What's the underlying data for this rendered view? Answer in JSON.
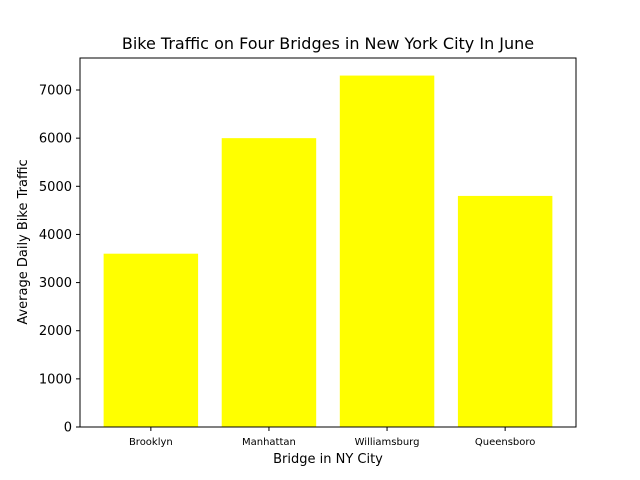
{
  "chart_data": {
    "type": "bar",
    "title": "Bike Traffic on Four Bridges in New York City In June",
    "xlabel": "Bridge in NY City",
    "ylabel": "Average Daily Bike Traffic",
    "categories": [
      "Brooklyn",
      "Manhattan",
      "Williamsburg",
      "Queensboro"
    ],
    "values": [
      3600,
      6000,
      7300,
      4800
    ],
    "yticks": [
      0,
      1000,
      2000,
      3000,
      4000,
      5000,
      6000,
      7000
    ],
    "ytick_labels": [
      "0",
      "1000",
      "2000",
      "3000",
      "4000",
      "5000",
      "6000",
      "7000"
    ],
    "ylim": [
      0,
      7665
    ],
    "bar_color": "#ffff00",
    "grid": false
  }
}
